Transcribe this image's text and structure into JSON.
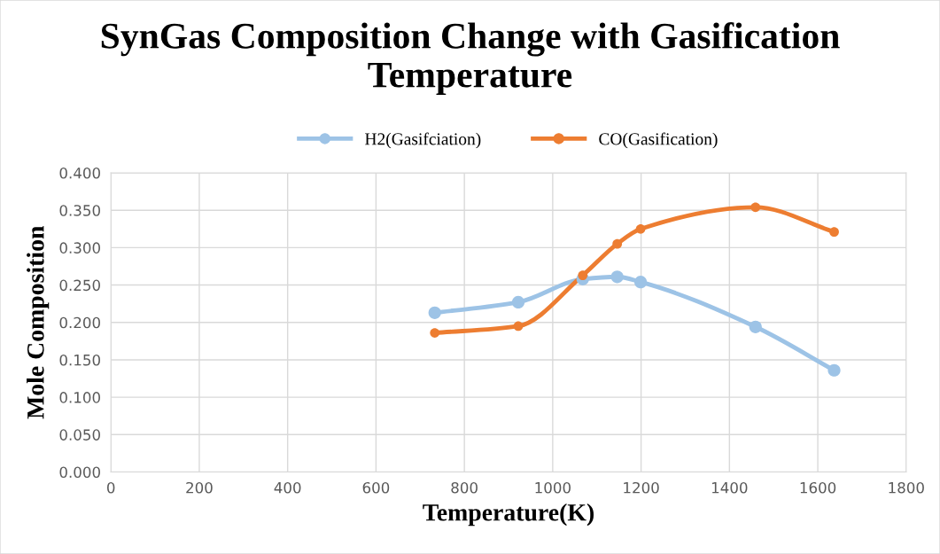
{
  "chart_data": {
    "type": "line",
    "title": "SynGas Composition Change with Gasification Temperature",
    "xlabel": "Temperature(K)",
    "ylabel": "Mole Composition",
    "x": [
      733,
      922,
      1068,
      1146,
      1199,
      1459,
      1637
    ],
    "series": [
      {
        "name": "H2(Gasifciation)",
        "color": "#9dc3e6",
        "values": [
          0.213,
          0.227,
          0.258,
          0.261,
          0.254,
          0.194,
          0.136
        ]
      },
      {
        "name": "CO(Gasification)",
        "color": "#ed7d31",
        "values": [
          0.186,
          0.195,
          0.263,
          0.305,
          0.325,
          0.354,
          0.321
        ]
      }
    ],
    "xlim": [
      0,
      1800
    ],
    "xticks": [
      0,
      200,
      400,
      600,
      800,
      1000,
      1200,
      1400,
      1600,
      1800
    ],
    "ylim": [
      0,
      0.4
    ],
    "yticks": [
      {
        "value": 0,
        "label": "0.000"
      },
      {
        "value": 0.05,
        "label": "0.050"
      },
      {
        "value": 0.1,
        "label": "0.100"
      },
      {
        "value": 0.15,
        "label": "0.150"
      },
      {
        "value": 0.2,
        "label": "0.200"
      },
      {
        "value": 0.25,
        "label": "0.250"
      },
      {
        "value": 0.3,
        "label": "0.300"
      },
      {
        "value": 0.35,
        "label": "0.350"
      },
      {
        "value": 0.4,
        "label": "0.400"
      }
    ],
    "grid": true,
    "legend": "top",
    "marker": "circle",
    "line_style": "solid"
  }
}
